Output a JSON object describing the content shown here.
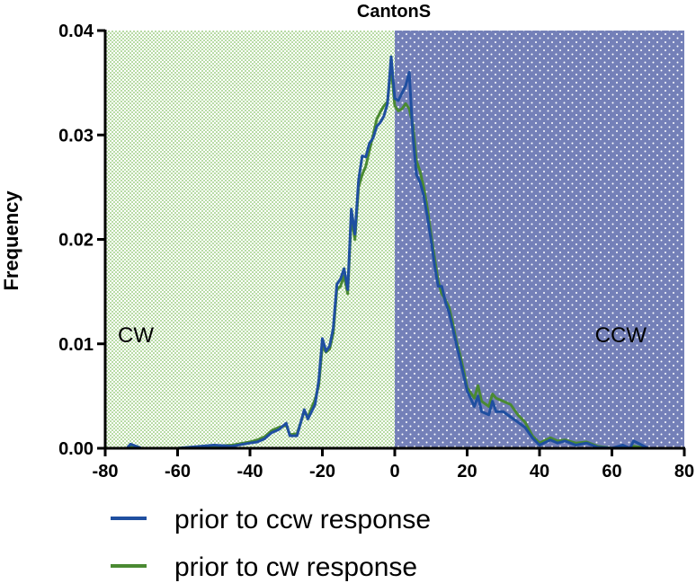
{
  "chart_data": {
    "type": "line",
    "title": "CantonS",
    "xlabel": "",
    "ylabel": "Frequency",
    "xlim": [
      -80,
      80
    ],
    "ylim": [
      0,
      0.04
    ],
    "x_ticks": [
      "-80",
      "-60",
      "-40",
      "-20",
      "0",
      "20",
      "40",
      "60",
      "80"
    ],
    "y_ticks": [
      "0.00",
      "0.01",
      "0.02",
      "0.03",
      "0.04"
    ],
    "grid": false,
    "legend_position": "bottom",
    "regions": [
      {
        "label": "CW",
        "x_range": [
          -80,
          0
        ],
        "color": "#b9dca6"
      },
      {
        "label": "CCW",
        "x_range": [
          0,
          80
        ],
        "color": "#7480b8"
      }
    ],
    "series": [
      {
        "name": "prior to ccw response",
        "color": "#1f4fa0",
        "x": [
          -80,
          -74,
          -73,
          -70,
          -60,
          -50,
          -45,
          -40,
          -38,
          -36,
          -34,
          -32,
          -30,
          -29,
          -27,
          -25,
          -24,
          -22,
          -21,
          -20,
          -19,
          -18,
          -17,
          -16,
          -15,
          -14,
          -13,
          -12,
          -11,
          -10,
          -9,
          -8,
          -7,
          -6,
          -5,
          -4,
          -3,
          -2,
          -1,
          0,
          1,
          2,
          3,
          4,
          5,
          6,
          7,
          8,
          9,
          10,
          11,
          12,
          13,
          14,
          15,
          16,
          17,
          18,
          19,
          20,
          22,
          23,
          24,
          26,
          27,
          28,
          30,
          32,
          34,
          36,
          38,
          40,
          43,
          45,
          47,
          50,
          53,
          56,
          60,
          63,
          65,
          66,
          70,
          75,
          80
        ],
        "y": [
          0,
          0,
          0.0004,
          0,
          0,
          0.0003,
          0.0002,
          0.0005,
          0.0006,
          0.0009,
          0.0015,
          0.0018,
          0.0024,
          0.0012,
          0.0012,
          0.0037,
          0.0028,
          0.0042,
          0.0065,
          0.0105,
          0.0093,
          0.0098,
          0.0115,
          0.0157,
          0.0162,
          0.0172,
          0.0152,
          0.0229,
          0.0205,
          0.0257,
          0.028,
          0.0279,
          0.0292,
          0.0297,
          0.0308,
          0.0312,
          0.0318,
          0.033,
          0.0375,
          0.0335,
          0.0333,
          0.034,
          0.0347,
          0.036,
          0.03,
          0.0262,
          0.0255,
          0.0242,
          0.0222,
          0.02,
          0.0175,
          0.0155,
          0.0155,
          0.014,
          0.013,
          0.0115,
          0.01,
          0.0085,
          0.007,
          0.0055,
          0.004,
          0.005,
          0.0035,
          0.0032,
          0.0045,
          0.0035,
          0.0035,
          0.003,
          0.0025,
          0.002,
          0.001,
          0.0003,
          0.0008,
          0.0005,
          0.0007,
          0.0003,
          0.0005,
          0.0001,
          0,
          0.0003,
          0,
          0.0007,
          0,
          0,
          0
        ]
      },
      {
        "name": "prior to cw response",
        "color": "#4a8a32",
        "x": [
          -80,
          -74,
          -73,
          -70,
          -60,
          -50,
          -45,
          -40,
          -38,
          -36,
          -34,
          -32,
          -30,
          -29,
          -27,
          -25,
          -24,
          -22,
          -21,
          -20,
          -19,
          -18,
          -17,
          -16,
          -15,
          -14,
          -13,
          -12,
          -11,
          -10,
          -9,
          -8,
          -7,
          -6,
          -5,
          -4,
          -3,
          -2,
          -1,
          0,
          1,
          2,
          3,
          4,
          5,
          6,
          7,
          8,
          9,
          10,
          11,
          12,
          13,
          14,
          15,
          16,
          17,
          18,
          19,
          20,
          22,
          23,
          24,
          26,
          27,
          28,
          30,
          32,
          34,
          36,
          38,
          40,
          43,
          45,
          47,
          50,
          53,
          56,
          60,
          63,
          65,
          66,
          70,
          75,
          80
        ],
        "y": [
          0,
          0,
          0.0002,
          0,
          0,
          0.0002,
          0.0003,
          0.0006,
          0.0008,
          0.0011,
          0.0017,
          0.002,
          0.0022,
          0.0013,
          0.0014,
          0.0035,
          0.003,
          0.0047,
          0.006,
          0.0098,
          0.0092,
          0.0095,
          0.011,
          0.0152,
          0.0155,
          0.0165,
          0.0148,
          0.0222,
          0.02,
          0.025,
          0.0262,
          0.027,
          0.0285,
          0.03,
          0.0315,
          0.0322,
          0.0328,
          0.0332,
          0.0365,
          0.0328,
          0.0323,
          0.0325,
          0.033,
          0.0325,
          0.031,
          0.0275,
          0.0265,
          0.025,
          0.023,
          0.0205,
          0.0182,
          0.016,
          0.0148,
          0.0142,
          0.0135,
          0.012,
          0.0103,
          0.009,
          0.0075,
          0.0058,
          0.0048,
          0.006,
          0.0045,
          0.004,
          0.0052,
          0.0048,
          0.0045,
          0.0042,
          0.0032,
          0.0025,
          0.0012,
          0.0005,
          0.001,
          0.0007,
          0.0008,
          0.0005,
          0.0006,
          0.0002,
          0,
          0.0002,
          0,
          0.0002,
          0,
          0,
          0
        ]
      }
    ]
  }
}
